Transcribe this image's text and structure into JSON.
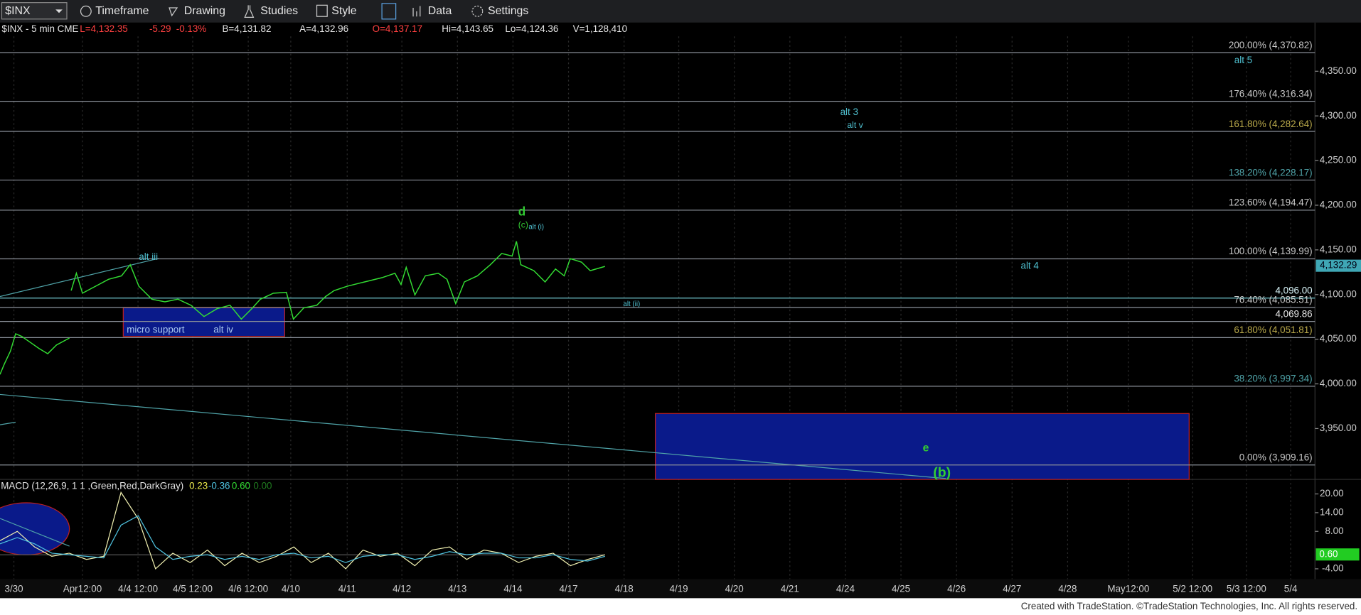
{
  "toolbar": {
    "symbol": "$INX",
    "items": [
      "Timeframe",
      "Drawing",
      "Studies",
      "Style",
      "Data",
      "Settings"
    ]
  },
  "chart_data": [
    {
      "type": "line",
      "title": "$INX - 5 min CME",
      "quote": [
        {
          "text": "L=4,132.35",
          "color": "#ff4040"
        },
        {
          "text": "-5.29",
          "color": "#ff4040"
        },
        {
          "text": "-0.13%",
          "color": "#ff4040"
        },
        {
          "text": "B=4,131.82",
          "color": "#e6e6e6"
        },
        {
          "text": "A=4,132.96",
          "color": "#e6e6e6"
        },
        {
          "text": "O=4,137.17",
          "color": "#ff4040"
        },
        {
          "text": "Hi=4,143.65",
          "color": "#e6e6e6"
        },
        {
          "text": "Lo=4,124.36",
          "color": "#e6e6e6"
        },
        {
          "text": "V=1,128,410",
          "color": "#e6e6e6"
        }
      ],
      "color": "#33dd33",
      "values": [
        4010.6,
        4022.2,
        4036.7,
        4056.1,
        4053.2,
        4046.4,
        4039.6,
        4033.8,
        4043.5,
        4051.3,
        null,
        4104.4,
        4123.8,
        4101.5,
        4109.3,
        4117.0,
        4120.9,
        4133.4,
        4109.3,
        4094.8,
        4091.9,
        4094.8,
        4088.0,
        4075.4,
        4084.1,
        4088.0,
        4072.5,
        4084.1,
        4094.8,
        4101.5,
        4102.5,
        4072.5,
        4085.1,
        4088.0,
        4097.7,
        4104.4,
        4109.3,
        4114.1,
        4118.9,
        4123.8,
        4111.2,
        4130.5,
        4099.6,
        4120.9,
        4123.8,
        4117.0,
        4089.9,
        4114.1,
        4120.9,
        4133.4,
        4146.0,
        4143.1,
        4159.6,
        4133.4,
        4126.7,
        4114.1,
        4128.6,
        4120.9,
        4140.2,
        4136.3,
        4126.7,
        4131.5
      ],
      "ylim": [
        3894,
        4389
      ],
      "yticks": [
        {
          "value": 4350,
          "label": "4,350.00"
        },
        {
          "value": 4300,
          "label": "4,300.00"
        },
        {
          "value": 4250,
          "label": "4,250.00"
        },
        {
          "value": 4200,
          "label": "4,200.00"
        },
        {
          "value": 4150,
          "label": "4,150.00"
        },
        {
          "value": 4100,
          "label": "4,100.00"
        },
        {
          "value": 4050,
          "label": "4,050.00"
        },
        {
          "value": 4000,
          "label": "4,000.00"
        },
        {
          "value": 3950,
          "label": "3,950.00"
        }
      ],
      "last_price": {
        "value": 4132.29,
        "label": "4,132.29"
      },
      "levels": [
        {
          "label": "200.00% (4,370.82)",
          "value": 4370.82,
          "color": "#c8c8c8"
        },
        {
          "label": "176.40% (4,316.34)",
          "value": 4316.34,
          "color": "#c8c8c8"
        },
        {
          "label": "161.80% (4,282.64)",
          "value": 4282.64,
          "color": "#b8a84a"
        },
        {
          "label": "138.20% (4,228.17)",
          "value": 4228.17,
          "color": "#4fa3a8"
        },
        {
          "label": "123.60% (4,194.47)",
          "value": 4194.47,
          "color": "#c8c8c8"
        },
        {
          "label": "100.00% (4,139.99)",
          "value": 4139.99,
          "color": "#c8c8c8"
        },
        {
          "label": "4,096.00",
          "value": 4096,
          "color": "#d8f4f8"
        },
        {
          "label": "76.40% (4,085.51)",
          "value": 4085.51,
          "color": "#c8c8c8"
        },
        {
          "label": "4,069.86",
          "value": 4069.86,
          "color": "#e6e6e6"
        },
        {
          "label": "61.80% (4,051.81)",
          "value": 4051.81,
          "color": "#b8a84a"
        },
        {
          "label": "38.20% (3,997.34)",
          "value": 3997.34,
          "color": "#4fa3a8"
        },
        {
          "label": "0.00% (3,909.16)",
          "value": 3909.16,
          "color": "#c8c8c8"
        }
      ],
      "annotations": [
        {
          "text": "alt iii",
          "color": "#4fc0d0"
        },
        {
          "text": "micro support",
          "color": "#a8c8f0"
        },
        {
          "text": "alt iv",
          "color": "#a8c8f0"
        },
        {
          "text": "d",
          "color": "#33cc33"
        },
        {
          "text": "(c)",
          "color": "#33cc33"
        },
        {
          "text": "alt (i)",
          "color": "#4fc0d0"
        },
        {
          "text": "alt (ii)",
          "color": "#4fc0d0"
        },
        {
          "text": "alt 3",
          "color": "#4fc0d0"
        },
        {
          "text": "alt v",
          "color": "#4fc0d0"
        },
        {
          "text": "alt 5",
          "color": "#4fc0d0"
        },
        {
          "text": "alt 4",
          "color": "#4fc0d0"
        },
        {
          "text": "e",
          "color": "#33cc33"
        },
        {
          "text": "(b)",
          "color": "#33cc33"
        }
      ]
    },
    {
      "type": "line",
      "title": "MACD (12,26,9, 1 1 ,Green,Red,DarkGray)",
      "readouts": {
        "values": [
          0.23,
          -0.36,
          0.6,
          0
        ],
        "value_labels": [
          "0.23",
          "-0.36",
          "0.60",
          "0.00"
        ],
        "colors": [
          "#e8e84a",
          "#4fc3e0",
          "#33dd33",
          "#1f7a1f"
        ]
      },
      "series": [
        {
          "color": "#f0f0b0",
          "values": [
            5,
            8,
            3,
            0,
            1,
            -1,
            0,
            20.5,
            12,
            -4,
            1,
            -2,
            2,
            -3,
            1,
            -2,
            0,
            3,
            -2,
            1,
            -4,
            2,
            0,
            1,
            -3,
            2,
            3,
            -1,
            2,
            1,
            -2,
            0,
            1,
            -3,
            -1,
            0.5
          ]
        },
        {
          "color": "#4fc3e0",
          "values": [
            4,
            6,
            4,
            1,
            0.5,
            0,
            -0.5,
            10,
            13,
            3,
            -1,
            0,
            0.5,
            -1,
            0,
            -1,
            0.5,
            1,
            -0.5,
            0,
            -2,
            0,
            0.5,
            0.5,
            -1,
            0,
            1.5,
            0.5,
            1,
            1,
            -0.5,
            -0.5,
            0.5,
            -1,
            -1.5,
            0
          ]
        }
      ],
      "ylim": [
        -7.3,
        24.1
      ],
      "yticks": [
        {
          "value": 20,
          "label": "20.00"
        },
        {
          "value": 14,
          "label": "14.00"
        },
        {
          "value": 8,
          "label": "8.00"
        },
        {
          "value": -4,
          "label": "-4.00"
        }
      ],
      "x_labels": [
        "3/30",
        "Apr12:00",
        "4/4 12:00",
        "4/5 12:00",
        "4/6 12:00",
        "4/10",
        "4/11",
        "4/12",
        "4/13",
        "4/14",
        "4/17",
        "4/18",
        "4/19",
        "4/20",
        "4/21",
        "4/24",
        "4/25",
        "4/26",
        "4/27",
        "4/28",
        "May12:00",
        "5/2 12:00",
        "5/3 12:00",
        "5/4"
      ]
    }
  ],
  "footer": "Created with TradeStation. ©TradeStation Technologies, Inc. All rights reserved."
}
